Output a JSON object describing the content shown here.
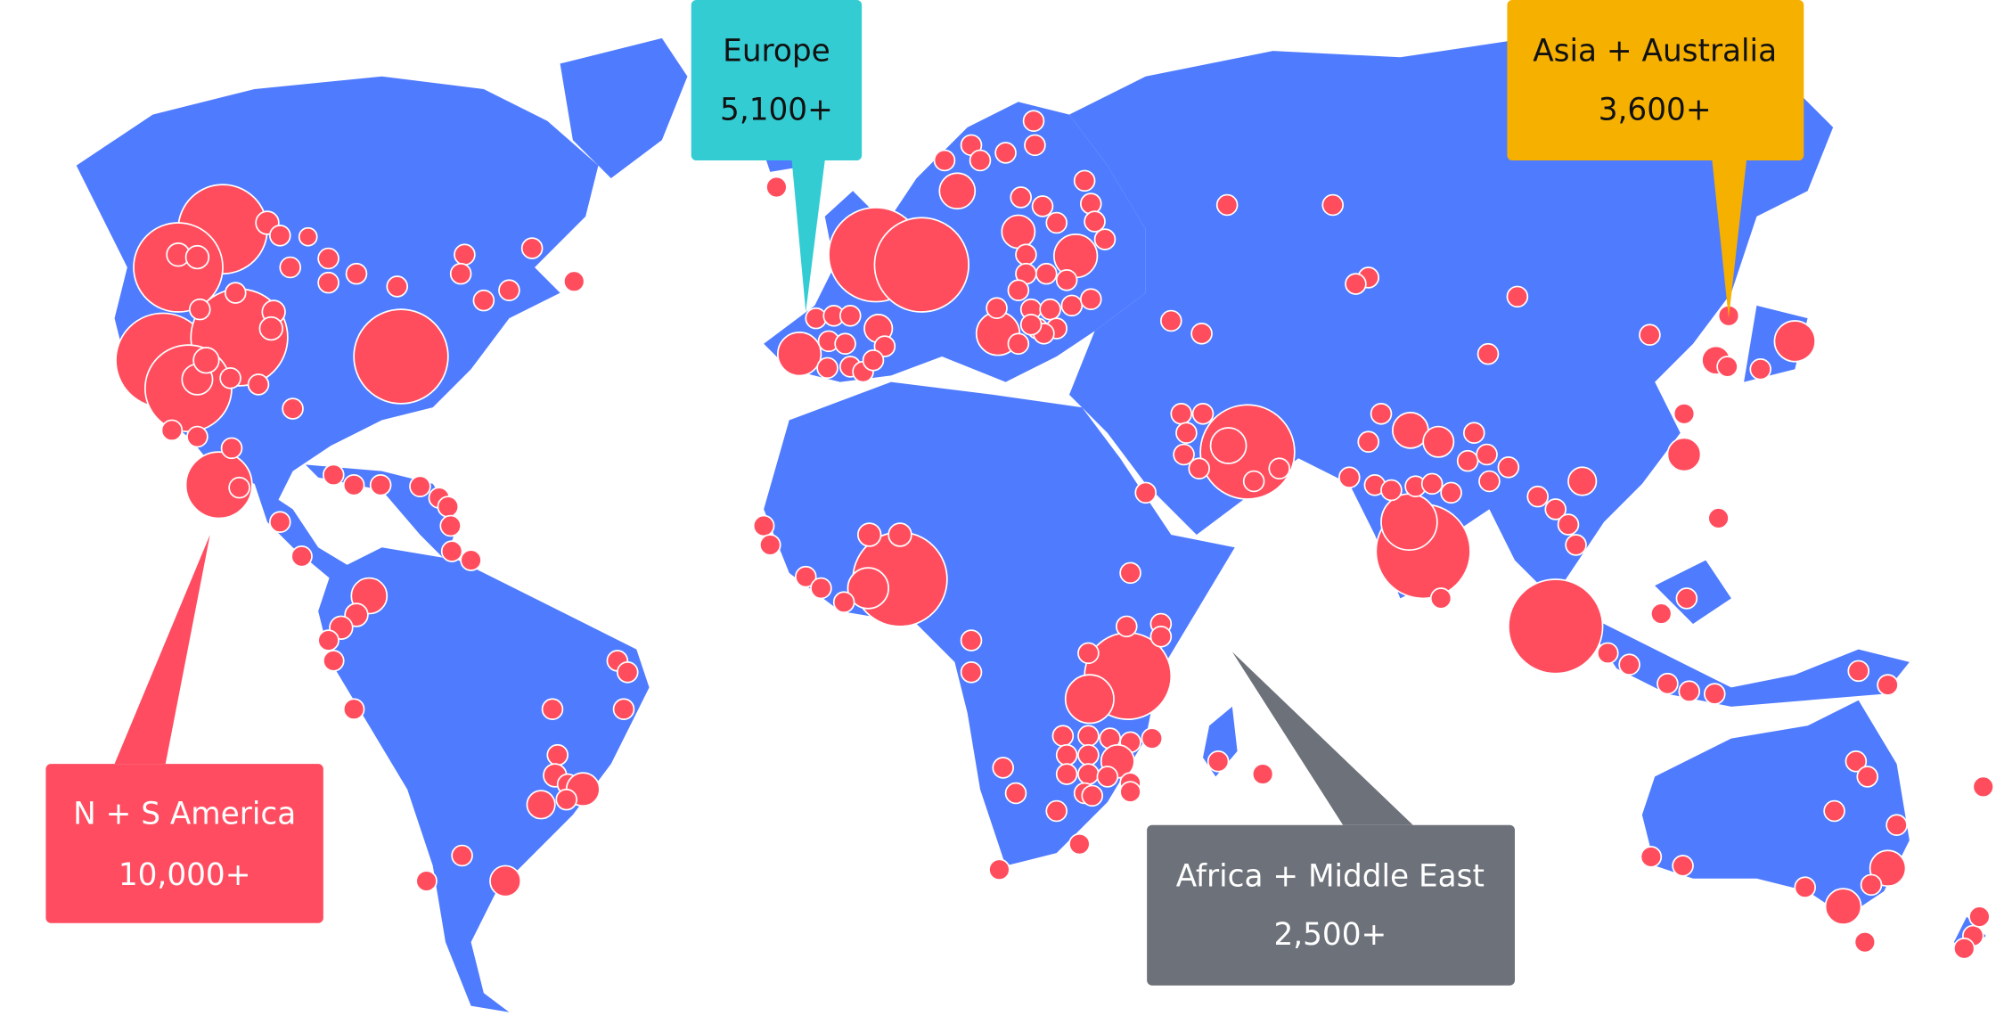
{
  "map": {
    "land_color": "#4F7BFF",
    "marker_color": "#FF4D5E"
  },
  "callouts": [
    {
      "region": "Europe",
      "count": "5,100+",
      "color": "#33CCD3",
      "text_color": "#111111"
    },
    {
      "region": "Asia + Australia",
      "count": "3,600+",
      "color": "#F5B000",
      "text_color": "#111111"
    },
    {
      "region": "N + S America",
      "count": "10,000+",
      "color": "#FF4C61",
      "text_color": "#FFFFFF"
    },
    {
      "region": "Africa + Middle East",
      "count": "2,500+",
      "color": "#6D7179",
      "text_color": "#FFFFFF"
    }
  ]
}
